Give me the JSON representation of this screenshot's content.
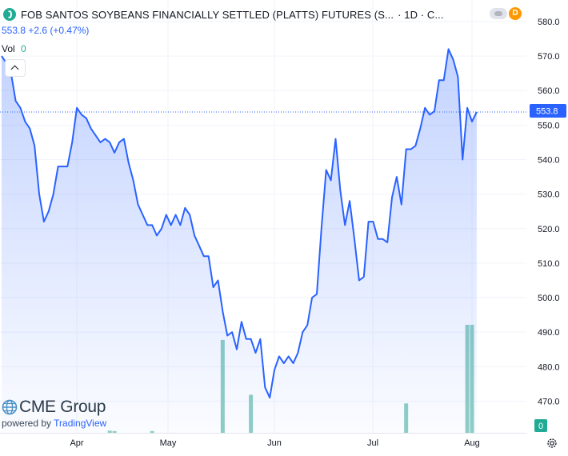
{
  "header": {
    "title": "FOB SANTOS SOYBEANS FINANCIALLY SETTLED (PLATTS) FUTURES (S...",
    "interval": "· 1D · C...",
    "badge": "D",
    "price_line": "553.8 +2.6 (+0.47%)",
    "vol_label": "Vol",
    "vol_value": "0",
    "colors": {
      "accent": "#2962ff",
      "positive": "#22ab94",
      "badge": "#ff9800"
    }
  },
  "icons": [
    "logo-icon",
    "toggle-icon",
    "chevron-up-icon",
    "gear-icon",
    "globe-icon"
  ],
  "brand": {
    "name": "CME Group",
    "powered_prefix": "powered by ",
    "powered_name": "TradingView"
  },
  "chart_data": {
    "type": "area",
    "price_axis": {
      "ticks": [
        470,
        480,
        490,
        500,
        510,
        520,
        530,
        540,
        550,
        560,
        570,
        580
      ],
      "range": [
        465,
        583
      ]
    },
    "time_axis": {
      "labels": [
        "Apr",
        "May",
        "Jun",
        "Jul",
        "Aug"
      ]
    },
    "last_price": {
      "value": 553.8,
      "label": "553.8"
    },
    "volume_readout": "0",
    "series": [
      {
        "values": [
          570,
          568,
          565,
          557,
          555,
          551,
          549,
          544,
          530,
          522,
          525,
          530,
          538,
          538,
          538,
          545,
          555,
          553,
          552,
          549,
          547,
          545,
          546,
          545,
          542,
          545,
          546,
          539,
          534,
          527,
          524,
          521,
          521,
          518,
          520,
          524,
          521,
          524,
          521,
          526,
          524,
          518,
          515,
          512,
          512,
          503,
          505,
          496,
          489,
          490,
          485,
          493,
          488,
          488,
          484,
          488,
          474,
          471,
          479,
          483,
          481,
          483,
          481,
          484,
          490,
          492,
          500,
          501,
          520,
          537,
          534,
          546,
          531,
          521,
          528,
          517,
          505,
          506,
          522,
          522,
          517,
          517,
          516,
          529,
          535,
          527,
          543,
          543,
          544,
          549,
          555,
          553,
          554,
          563,
          563,
          572,
          569,
          564,
          540,
          555,
          551,
          553.8
        ]
      },
      {
        "name": "Vol",
        "bars": [
          {
            "index": 23,
            "value": 0.5
          },
          {
            "index": 24,
            "value": 0.4
          },
          {
            "index": 32,
            "value": 0.4
          },
          {
            "index": 47,
            "value": 21.5
          },
          {
            "index": 53,
            "value": 8.8
          },
          {
            "index": 86,
            "value": 6.8
          },
          {
            "index": 99,
            "value": 25
          },
          {
            "index": 100,
            "value": 25
          }
        ]
      }
    ]
  }
}
